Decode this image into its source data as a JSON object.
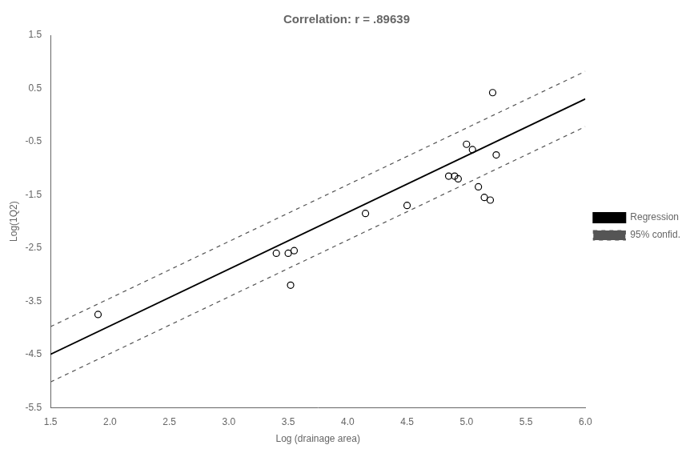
{
  "chart_data": {
    "type": "scatter",
    "title": "Correlation: r = .89639",
    "xlabel": "Log (drainage area)",
    "ylabel": "Log(1Q2)",
    "xlim": [
      1.5,
      6.0
    ],
    "ylim": [
      -5.5,
      1.5
    ],
    "xticks": [
      1.5,
      {
        "value": 2.0,
        "label": "2.0"
      },
      2.5,
      {
        "value": 3.0,
        "label": "3.0"
      },
      3.5,
      {
        "value": 4.0,
        "label": "4.0"
      },
      4.5,
      {
        "value": 5.0,
        "label": "5.0"
      },
      5.5,
      {
        "value": 6.0,
        "label": "6.0"
      }
    ],
    "yticks": [
      -5.5,
      {
        "value": -5.0,
        "label": ""
      },
      -4.5,
      {
        "value": -4.0,
        "label": ""
      },
      -3.5,
      {
        "value": -3.0,
        "label": ""
      },
      -2.5,
      {
        "value": -2.0,
        "label": ""
      },
      -1.5,
      {
        "value": -1.0,
        "label": ""
      },
      -0.5,
      {
        "value": 0.0,
        "label": ""
      },
      0.5,
      {
        "value": 1.0,
        "label": ""
      },
      1.5
    ],
    "grid": false,
    "legend": "right",
    "series": [
      {
        "type": "scatter",
        "color": "#000000",
        "marker": "circle",
        "x": [
          1.9,
          3.4,
          3.5,
          3.55,
          3.52,
          4.15,
          4.5,
          4.85,
          4.9,
          4.93,
          5.0,
          5.05,
          5.1,
          5.15,
          5.2,
          5.22,
          5.25
        ],
        "values": [
          -3.75,
          -2.6,
          -2.6,
          -2.55,
          -3.2,
          -1.85,
          -1.7,
          -1.15,
          -1.15,
          -1.2,
          -0.55,
          -0.65,
          -1.35,
          -1.55,
          -1.6,
          0.42,
          -0.75
        ]
      },
      {
        "name": "Regression",
        "type": "line",
        "color": "#000000",
        "x": [
          1.5,
          6.0
        ],
        "values": [
          -4.4995,
          0.302
        ]
      },
      {
        "name": "95% confid.",
        "type": "line",
        "color": "#555555",
        "line_style": "dashed",
        "x": [
          1.5,
          6.0
        ],
        "values": [
          -3.9795,
          0.822
        ]
      },
      {
        "name": "95% confid.",
        "type": "line",
        "color": "#555555",
        "line_style": "dashed",
        "x": [
          1.5,
          6.0
        ],
        "values": [
          -5.0195,
          -0.218
        ]
      }
    ]
  }
}
